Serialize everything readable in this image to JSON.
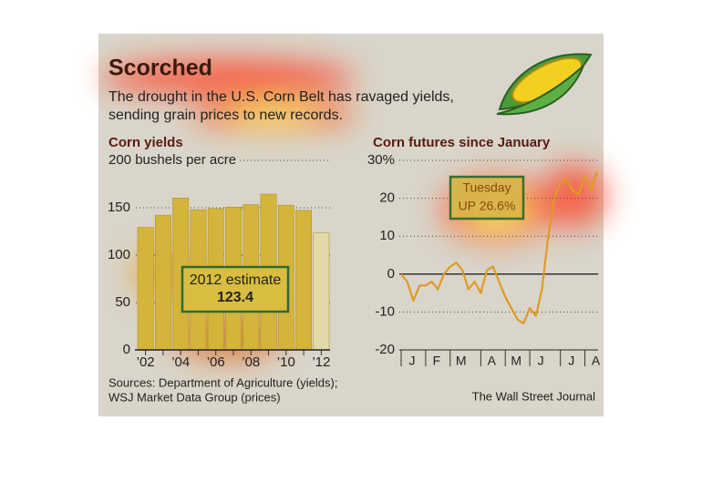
{
  "header": {
    "title": "Scorched",
    "subtitle_lines": [
      "The drought in the U.S. Corn Belt has ravaged yields,",
      "sending grain prices to new records."
    ]
  },
  "chart_data": [
    {
      "type": "bar",
      "title": "Corn yields",
      "categories": [
        "’02",
        null,
        "’04",
        null,
        "’06",
        null,
        "’08",
        null,
        "’10",
        null,
        "’12"
      ],
      "values": [
        129.3,
        142.2,
        160.3,
        147.9,
        149.1,
        150.7,
        153.3,
        164.4,
        152.8,
        147.2,
        123.4
      ],
      "color": "#d4b43a",
      "highlight_color": "#e3d9a8",
      "ylim": [
        0,
        200
      ],
      "yticks": [
        0,
        50,
        100,
        150,
        {
          "value": 200,
          "label": "200 bushels per acre"
        }
      ],
      "grid": true,
      "annotation": "2012 estimate"
    },
    {
      "type": "line",
      "title": "Corn futures since January",
      "categories": [
        "J",
        null,
        null,
        null,
        "F",
        null,
        null,
        null,
        "M",
        null,
        null,
        null,
        null,
        "A",
        null,
        null,
        null,
        "M",
        null,
        null,
        null,
        "J",
        null,
        null,
        null,
        null,
        "J",
        null,
        null,
        null,
        "A",
        null,
        null
      ],
      "series": [
        {
          "name": "Corn futures",
          "color": "#e09a24",
          "values": [
            0,
            -2,
            -7,
            -3,
            -3,
            -2,
            -4,
            0,
            2,
            3,
            1,
            -4,
            -2,
            -5,
            1,
            2,
            -2,
            -6,
            -9,
            -12,
            -13,
            -9,
            -11,
            -4,
            10,
            20,
            24,
            25,
            22,
            21,
            26,
            22,
            27
          ]
        }
      ],
      "ylim": [
        -20,
        30
      ],
      "yticks": [
        -20,
        -10,
        0,
        10,
        20,
        {
          "value": 30,
          "label": "30%"
        }
      ],
      "grid": true,
      "annotation_lines": [
        "Tuesday",
        "UP 26.6%"
      ]
    }
  ],
  "footer": {
    "sources": [
      "Sources: Department of Agriculture (yields);",
      "WSJ Market Data Group (prices)"
    ],
    "credit": "The Wall Street Journal"
  }
}
